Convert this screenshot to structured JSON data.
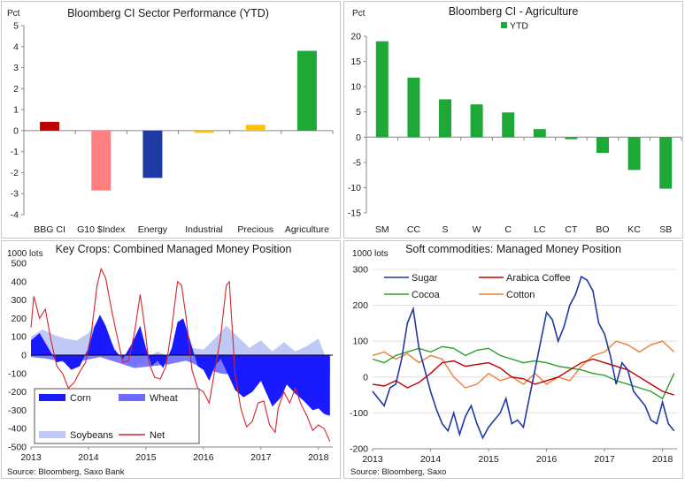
{
  "chart_data": [
    {
      "type": "bar",
      "title": "Bloomberg  CI Sector Performance  (YTD)",
      "ylabel": "Pct",
      "ylim": [
        -4,
        5
      ],
      "yticks": [
        "5",
        "4",
        "3",
        "2",
        "1",
        "0",
        "-1",
        "-2",
        "-3",
        "-4"
      ],
      "categories": [
        "BBG CI",
        "G10 $Index",
        "Energy",
        "Industrial",
        "Precious",
        "Agriculture"
      ],
      "values": [
        0.42,
        -2.85,
        -2.25,
        -0.1,
        0.28,
        3.8
      ],
      "colors": [
        "#c00000",
        "#ff8080",
        "#1f3aa3",
        "#ffc000",
        "#ffc000",
        "#1ea838"
      ]
    },
    {
      "type": "bar",
      "title": "Bloomberg  CI - Agriculture",
      "ylabel": "Pct",
      "legend": "YTD",
      "color": "#1ea838",
      "ylim": [
        -15,
        20
      ],
      "yticks": [
        "20",
        "15",
        "10",
        "5",
        "0",
        "-5",
        "-10",
        "-15"
      ],
      "categories": [
        "SM",
        "CC",
        "S",
        "W",
        "C",
        "LC",
        "CT",
        "BO",
        "KC",
        "SB"
      ],
      "values": [
        19,
        11.8,
        7.5,
        6.5,
        4.9,
        1.6,
        -0.4,
        -3.1,
        -6.5,
        -10.2
      ]
    },
    {
      "type": "area",
      "title": "Key Crops: Combined Managed Money Position",
      "ylabel": "1000 lots",
      "source": "Source: Bloomberg,  Saxo Bank",
      "ylim": [
        -500,
        500
      ],
      "yticks": [
        "500",
        "400",
        "300",
        "200",
        "100",
        "0",
        "-100",
        "-200",
        "-300",
        "-400",
        "-500"
      ],
      "xticks": [
        "2013",
        "2014",
        "2015",
        "2016",
        "2017",
        "2018"
      ],
      "x_range": [
        2013.0,
        2018.25
      ],
      "legend": [
        "Corn",
        "Wheat",
        "Soybeans",
        "Net"
      ],
      "colors": {
        "corn": "#1a1aff",
        "wheat": "#6b6bff",
        "soybeans": "#c0c8f4",
        "net": "#d9242b"
      },
      "series": [
        {
          "name": "Corn",
          "x": [
            2013.0,
            2013.15,
            2013.3,
            2013.45,
            2013.55,
            2013.7,
            2013.85,
            2014.0,
            2014.1,
            2014.2,
            2014.3,
            2014.45,
            2014.6,
            2014.75,
            2014.9,
            2015.0,
            2015.1,
            2015.2,
            2015.3,
            2015.45,
            2015.55,
            2015.65,
            2015.75,
            2015.9,
            2016.0,
            2016.1,
            2016.2,
            2016.3,
            2016.45,
            2016.55,
            2016.7,
            2016.85,
            2017.0,
            2017.1,
            2017.2,
            2017.35,
            2017.45,
            2017.6,
            2017.75,
            2017.9,
            2018.0,
            2018.1,
            2018.2
          ],
          "y": [
            80,
            120,
            40,
            -40,
            -30,
            -80,
            -60,
            40,
            150,
            220,
            160,
            30,
            -20,
            60,
            160,
            40,
            -60,
            -30,
            -70,
            40,
            180,
            200,
            100,
            -60,
            -80,
            -140,
            -60,
            -20,
            -120,
            -190,
            -230,
            -200,
            -140,
            -210,
            -280,
            -230,
            -160,
            -210,
            -250,
            -300,
            -290,
            -320,
            -330
          ]
        },
        {
          "name": "Wheat",
          "x": [
            2013.0,
            2013.3,
            2013.6,
            2013.9,
            2014.2,
            2014.5,
            2014.8,
            2015.1,
            2015.4,
            2015.7,
            2016.0,
            2016.3,
            2016.6,
            2016.9,
            2017.2,
            2017.5,
            2017.8,
            2018.0,
            2018.2
          ],
          "y": [
            -10,
            -20,
            -40,
            -30,
            -10,
            -40,
            -70,
            -60,
            -50,
            -30,
            -70,
            -100,
            -110,
            -120,
            -90,
            -60,
            -90,
            -110,
            -100
          ]
        },
        {
          "name": "Soybeans",
          "x": [
            2013.0,
            2013.2,
            2013.4,
            2013.6,
            2013.8,
            2014.0,
            2014.15,
            2014.35,
            2014.6,
            2014.8,
            2015.0,
            2015.2,
            2015.4,
            2015.6,
            2015.8,
            2016.0,
            2016.2,
            2016.4,
            2016.6,
            2016.8,
            2017.0,
            2017.2,
            2017.4,
            2017.6,
            2017.8,
            2018.0,
            2018.15
          ],
          "y": [
            100,
            140,
            110,
            90,
            80,
            120,
            180,
            100,
            -40,
            -60,
            -20,
            20,
            -10,
            60,
            40,
            30,
            90,
            160,
            100,
            40,
            80,
            20,
            70,
            20,
            50,
            90,
            -30
          ]
        },
        {
          "name": "Net",
          "x": [
            2013.0,
            2013.05,
            2013.15,
            2013.25,
            2013.35,
            2013.45,
            2013.55,
            2013.65,
            2013.75,
            2013.85,
            2013.95,
            2014.05,
            2014.15,
            2014.22,
            2014.3,
            2014.4,
            2014.5,
            2014.6,
            2014.7,
            2014.8,
            2014.9,
            2014.98,
            2015.05,
            2015.15,
            2015.25,
            2015.35,
            2015.45,
            2015.55,
            2015.62,
            2015.7,
            2015.8,
            2015.9,
            2016.0,
            2016.1,
            2016.2,
            2016.3,
            2016.4,
            2016.45,
            2016.55,
            2016.65,
            2016.75,
            2016.85,
            2016.95,
            2017.05,
            2017.15,
            2017.25,
            2017.3,
            2017.4,
            2017.5,
            2017.6,
            2017.7,
            2017.8,
            2017.9,
            2018.0,
            2018.1,
            2018.2
          ],
          "y": [
            150,
            320,
            200,
            250,
            80,
            -60,
            -100,
            -180,
            -150,
            -90,
            -40,
            120,
            380,
            470,
            420,
            250,
            100,
            -40,
            -30,
            120,
            330,
            150,
            -40,
            -120,
            -130,
            -60,
            150,
            400,
            380,
            200,
            -80,
            -180,
            -200,
            -260,
            -80,
            100,
            380,
            400,
            -100,
            -290,
            -390,
            -360,
            -260,
            -250,
            -380,
            -420,
            -290,
            -200,
            -260,
            -180,
            -270,
            -330,
            -410,
            -380,
            -400,
            -470
          ]
        }
      ]
    },
    {
      "type": "line",
      "title": "Soft commodities: Managed Money Position",
      "ylabel": "1000 lots",
      "source": "Source: Bloomberg, Saxo",
      "ylim": [
        -200,
        300
      ],
      "yticks": [
        "300",
        "200",
        "100",
        "0",
        "-100",
        "-200"
      ],
      "xticks": [
        "2013",
        "2014",
        "2015",
        "2016",
        "2017",
        "2018"
      ],
      "x_range": [
        2013.0,
        2018.25
      ],
      "legend": [
        "Sugar",
        "Arabica Coffee",
        "Cocoa",
        "Cotton"
      ],
      "colors": {
        "sugar": "#1f3aa3",
        "arabica": "#c00000",
        "cocoa": "#2ca02c",
        "cotton": "#f07e3c"
      },
      "series": [
        {
          "name": "Sugar",
          "x": [
            2013.0,
            2013.1,
            2013.2,
            2013.3,
            2013.4,
            2013.5,
            2013.6,
            2013.7,
            2013.8,
            2013.9,
            2014.0,
            2014.1,
            2014.2,
            2014.3,
            2014.4,
            2014.5,
            2014.6,
            2014.7,
            2014.8,
            2014.9,
            2015.0,
            2015.1,
            2015.2,
            2015.3,
            2015.4,
            2015.5,
            2015.6,
            2015.7,
            2015.8,
            2015.9,
            2016.0,
            2016.1,
            2016.2,
            2016.3,
            2016.4,
            2016.5,
            2016.6,
            2016.7,
            2016.8,
            2016.9,
            2017.0,
            2017.1,
            2017.2,
            2017.3,
            2017.4,
            2017.5,
            2017.6,
            2017.7,
            2017.8,
            2017.9,
            2018.0,
            2018.1,
            2018.2
          ],
          "y": [
            -40,
            -60,
            -80,
            -30,
            -20,
            50,
            150,
            190,
            80,
            20,
            -40,
            -90,
            -130,
            -150,
            -100,
            -160,
            -110,
            -80,
            -130,
            -170,
            -140,
            -120,
            -100,
            -60,
            -130,
            -120,
            -140,
            -60,
            20,
            100,
            180,
            160,
            100,
            140,
            200,
            230,
            280,
            270,
            240,
            150,
            120,
            60,
            -20,
            40,
            20,
            -40,
            -60,
            -80,
            -120,
            -130,
            -70,
            -130,
            -150
          ]
        },
        {
          "name": "Arabica Coffee",
          "x": [
            2013.0,
            2013.2,
            2013.4,
            2013.6,
            2013.8,
            2014.0,
            2014.2,
            2014.4,
            2014.6,
            2014.8,
            2015.0,
            2015.2,
            2015.4,
            2015.6,
            2015.8,
            2016.0,
            2016.2,
            2016.4,
            2016.6,
            2016.8,
            2017.0,
            2017.2,
            2017.4,
            2017.6,
            2017.8,
            2018.0,
            2018.2
          ],
          "y": [
            -20,
            -25,
            -10,
            -30,
            -15,
            10,
            40,
            45,
            30,
            35,
            40,
            25,
            0,
            -5,
            -20,
            -10,
            0,
            20,
            40,
            50,
            40,
            30,
            20,
            0,
            -20,
            -40,
            -50
          ]
        },
        {
          "name": "Cocoa",
          "x": [
            2013.0,
            2013.2,
            2013.4,
            2013.6,
            2013.8,
            2014.0,
            2014.2,
            2014.4,
            2014.6,
            2014.8,
            2015.0,
            2015.2,
            2015.4,
            2015.6,
            2015.8,
            2016.0,
            2016.2,
            2016.4,
            2016.6,
            2016.8,
            2017.0,
            2017.2,
            2017.4,
            2017.6,
            2017.8,
            2018.0,
            2018.2
          ],
          "y": [
            50,
            40,
            60,
            70,
            80,
            70,
            85,
            80,
            60,
            75,
            80,
            60,
            50,
            40,
            45,
            40,
            30,
            25,
            20,
            10,
            5,
            -10,
            -20,
            -30,
            -40,
            -60,
            10
          ]
        },
        {
          "name": "Cotton",
          "x": [
            2013.0,
            2013.2,
            2013.4,
            2013.6,
            2013.8,
            2014.0,
            2014.2,
            2014.4,
            2014.6,
            2014.8,
            2015.0,
            2015.2,
            2015.4,
            2015.6,
            2015.8,
            2016.0,
            2016.2,
            2016.4,
            2016.6,
            2016.8,
            2017.0,
            2017.2,
            2017.4,
            2017.6,
            2017.8,
            2018.0,
            2018.2
          ],
          "y": [
            60,
            70,
            50,
            65,
            40,
            60,
            50,
            0,
            -30,
            -20,
            10,
            -10,
            0,
            -20,
            10,
            -20,
            0,
            -10,
            30,
            60,
            70,
            100,
            90,
            70,
            90,
            100,
            70
          ]
        }
      ]
    }
  ]
}
